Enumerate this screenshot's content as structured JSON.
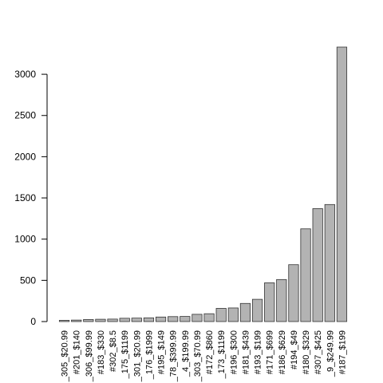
{
  "chart_data": {
    "type": "bar",
    "categories": [
      "_305_$20.99",
      "#201_$140",
      "_306_$99.99",
      "#183_$330",
      "#302_$8.5",
      "_175_$1199",
      "_301_$20.99",
      "_176_$1999",
      "#195_$149",
      "_78_$399.99",
      "_4_$199.99",
      "_303_$70.99",
      "#172_$860",
      "_173_$1199",
      "#196_$300",
      "#181_$439",
      "#193_$199",
      "#171_$699",
      "#186_$629",
      "#194_$49",
      "#180_$329",
      "#307_$425",
      "_9_$249.99",
      "#187_$199"
    ],
    "values": [
      15,
      18,
      25,
      28,
      30,
      40,
      42,
      45,
      55,
      60,
      62,
      88,
      95,
      160,
      165,
      220,
      270,
      470,
      510,
      690,
      1125,
      1370,
      1420,
      3330
    ],
    "title": "",
    "xlabel": "",
    "ylabel": "",
    "ylim": [
      0,
      3330
    ],
    "yticks": [
      0,
      500,
      1000,
      1500,
      2000,
      2500,
      3000
    ],
    "bar_color": "#b3b3b3",
    "border_color": "#333333",
    "grid": false
  }
}
